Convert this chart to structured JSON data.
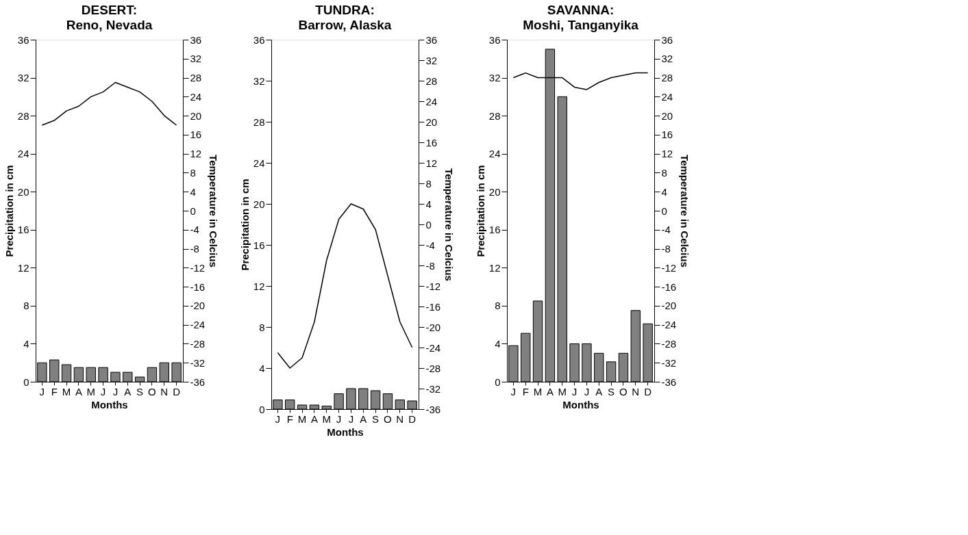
{
  "chart_data": [
    {
      "type": "bar",
      "title": "DESERT:",
      "subtitle": "Reno, Nevada",
      "xlabel": "Months",
      "ylabel": "Precipitation in cm",
      "y2label": "Temperature in Celcius",
      "categories": [
        "J",
        "F",
        "M",
        "A",
        "M",
        "J",
        "J",
        "A",
        "S",
        "O",
        "N",
        "D"
      ],
      "ylim": [
        0,
        36
      ],
      "yticks": [
        0,
        4,
        8,
        12,
        16,
        20,
        24,
        28,
        32,
        36
      ],
      "y2lim": [
        -36,
        36
      ],
      "y2ticks": [
        -36,
        -32,
        -28,
        -24,
        -20,
        -16,
        -12,
        -8,
        -4,
        0,
        4,
        8,
        12,
        16,
        20,
        24,
        28,
        32,
        36
      ],
      "series": [
        {
          "color": "#808080",
          "values": [
            2.0,
            2.3,
            1.8,
            1.5,
            1.5,
            1.5,
            1.0,
            1.0,
            0.5,
            1.5,
            2.0,
            2.0
          ]
        },
        {
          "type": "line",
          "axis": "y2",
          "color": "#000000",
          "values": [
            18,
            19,
            21,
            22,
            24,
            25,
            27,
            26,
            25,
            23,
            20,
            18
          ]
        }
      ]
    },
    {
      "type": "bar",
      "title": "TUNDRA:",
      "subtitle": "Barrow, Alaska",
      "xlabel": "Months",
      "ylabel": "Precipitation in cm",
      "y2label": "Temperature in Celcius",
      "categories": [
        "J",
        "F",
        "M",
        "A",
        "M",
        "J",
        "J",
        "A",
        "S",
        "O",
        "N",
        "D"
      ],
      "ylim": [
        0,
        36
      ],
      "yticks": [
        0,
        4,
        8,
        12,
        16,
        20,
        24,
        28,
        32,
        36
      ],
      "y2lim": [
        -36,
        36
      ],
      "y2ticks": [
        -36,
        -32,
        -28,
        -24,
        -20,
        -16,
        -12,
        -8,
        -4,
        0,
        4,
        8,
        12,
        16,
        20,
        24,
        28,
        32,
        36
      ],
      "series": [
        {
          "color": "#808080",
          "values": [
            0.9,
            0.9,
            0.4,
            0.4,
            0.3,
            1.5,
            2.0,
            2.0,
            1.8,
            1.5,
            0.9,
            0.8
          ]
        },
        {
          "type": "line",
          "axis": "y2",
          "color": "#000000",
          "values": [
            -25,
            -28,
            -26,
            -19,
            -7,
            1,
            4,
            3,
            -1,
            -10,
            -19,
            -24
          ]
        }
      ]
    },
    {
      "type": "bar",
      "title": "SAVANNA:",
      "subtitle": "Moshi, Tanganyika",
      "xlabel": "Months",
      "ylabel": "Precipitation in cm",
      "y2label": "Temperature in Celcius",
      "categories": [
        "J",
        "F",
        "M",
        "A",
        "M",
        "J",
        "J",
        "A",
        "S",
        "O",
        "N",
        "D"
      ],
      "ylim": [
        0,
        36
      ],
      "yticks": [
        0,
        4,
        8,
        12,
        16,
        20,
        24,
        28,
        32,
        36
      ],
      "y2lim": [
        -36,
        36
      ],
      "y2ticks": [
        -36,
        -32,
        -28,
        -24,
        -20,
        -16,
        -12,
        -8,
        -4,
        0,
        4,
        8,
        12,
        16,
        20,
        24,
        28,
        32,
        36
      ],
      "series": [
        {
          "color": "#808080",
          "values": [
            3.8,
            5.1,
            8.5,
            35,
            30,
            4,
            4,
            3,
            2.1,
            3,
            7.5,
            6.1
          ]
        },
        {
          "type": "line",
          "axis": "y2",
          "color": "#000000",
          "values": [
            28,
            29,
            28,
            28,
            28,
            26,
            25.5,
            27,
            28,
            28.5,
            29,
            29
          ]
        }
      ]
    }
  ]
}
